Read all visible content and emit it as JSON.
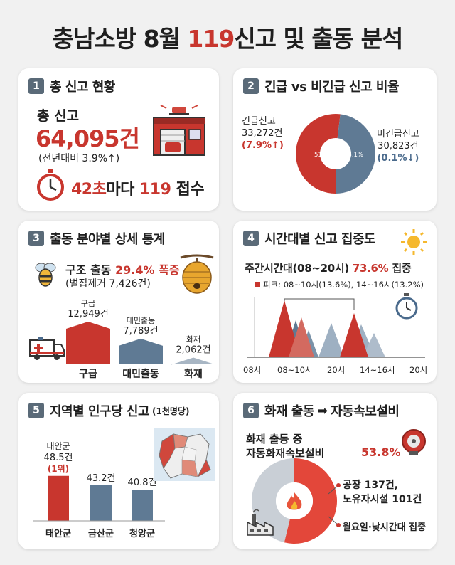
{
  "header": {
    "title_pre": "충남소방 8월 ",
    "title_accent": "119",
    "title_post": "신고 및 출동 분석"
  },
  "card1": {
    "num": "1",
    "title": "총 신고 현황",
    "label": "총 신고",
    "value": "64,095건",
    "yoy": "(전년대비 3.9%↑)",
    "interval_value": "42초",
    "interval_mid": "마다 ",
    "interval_num": "119",
    "interval_post": " 접수"
  },
  "card2": {
    "num": "2",
    "title": "긴급 vs 비긴급 신고 비율",
    "emergency": {
      "label": "긴급신고",
      "count": "33,272건",
      "change": "(7.9%↑)",
      "pct": "51.9%",
      "value": 51.9
    },
    "non_emergency": {
      "label": "비긴급신고",
      "count": "30,823건",
      "change": "(0.1%↓)",
      "pct": "48.1%",
      "value": 48.1
    },
    "colors": {
      "emergency": "#c8362e",
      "non_emergency": "#5f7a94"
    }
  },
  "card3": {
    "num": "3",
    "title": "출동 분야별 상세 통계",
    "rescue_pre": "구조 출동 ",
    "rescue_pct": "29.4% 폭증",
    "rescue_sub": "(벌집제거 7,426건)",
    "bars": [
      {
        "name": "구급",
        "top": "구급",
        "count": "12,949건",
        "value": 12949
      },
      {
        "name": "대민출동",
        "top": "대민출동",
        "count": "7,789건",
        "value": 7789
      },
      {
        "name": "화재",
        "top": "화재",
        "count": "2,062건",
        "value": 2062
      }
    ]
  },
  "card4": {
    "num": "4",
    "title": "시간대별 신고 집중도",
    "headline_pre": "주간시간대(08~20시) ",
    "headline_pct": "73.6%",
    "headline_post": " 집중",
    "peak": "피크: 08~10시(13.6%), 14~16시(13.2%)",
    "axis": [
      "08시",
      "08~10시",
      "20시",
      "14~16시",
      "20시"
    ]
  },
  "card5": {
    "num": "5",
    "title": "지역별 인구당 신고",
    "title_unit": "(1천명당)",
    "bars": [
      {
        "name": "태안군",
        "region": "태안군",
        "value_label": "48.5건",
        "rank": "(1위)",
        "value": 48.5
      },
      {
        "name": "금산군",
        "value_label": "43.2건",
        "value": 43.2
      },
      {
        "name": "청양군",
        "value_label": "40.8건",
        "value": 40.8
      }
    ]
  },
  "card6": {
    "num": "6",
    "title_pre": "화재 출동 ",
    "title_post": "자동속보설비",
    "line1": "화재 출동 중",
    "line2": "자동화재속보설비",
    "pct": "53.8%",
    "value": 53.8,
    "note1a": "공장 137건,",
    "note1b": "노유자시설 101건",
    "note2": "월요일·낮시간대 집중"
  }
}
